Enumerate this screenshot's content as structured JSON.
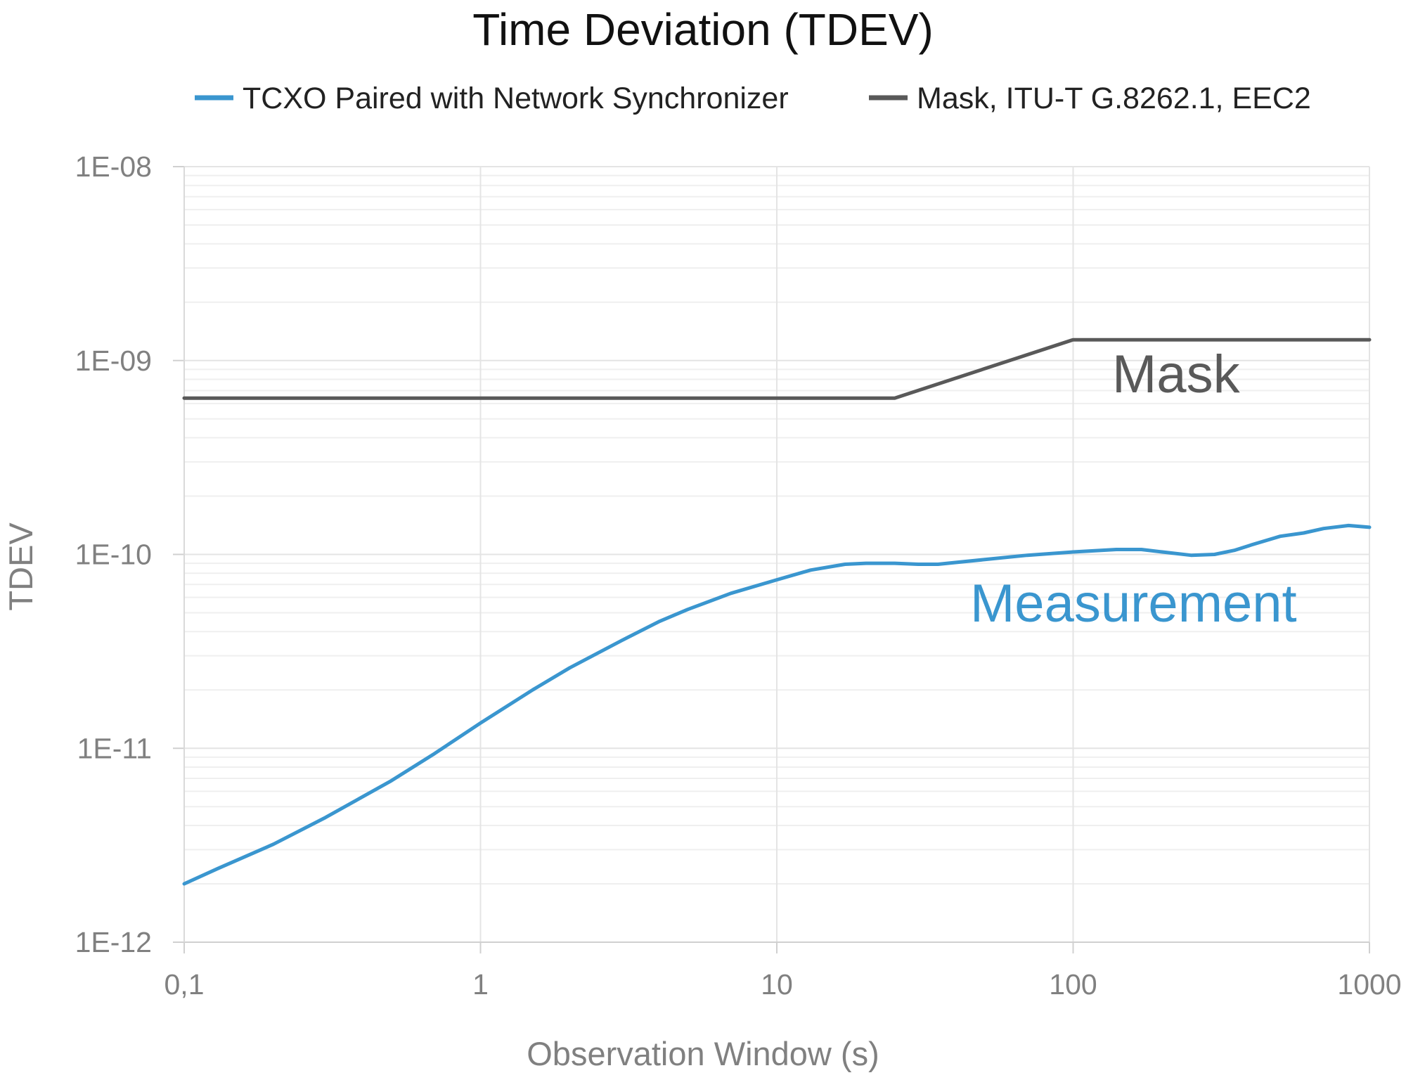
{
  "chart_data": {
    "type": "line",
    "title": "Time Deviation (TDEV)",
    "xlabel": "Observation Window (s)",
    "ylabel": "TDEV",
    "x_scale": "log",
    "y_scale": "log",
    "xlim": [
      0.1,
      1000
    ],
    "ylim": [
      1e-12,
      1e-08
    ],
    "x_ticks": [
      {
        "value": 0.1,
        "label": "0,1"
      },
      {
        "value": 1,
        "label": "1"
      },
      {
        "value": 10,
        "label": "10"
      },
      {
        "value": 100,
        "label": "100"
      },
      {
        "value": 1000,
        "label": "1000"
      }
    ],
    "y_ticks": [
      {
        "value": 1e-12,
        "label": "1E-12"
      },
      {
        "value": 1e-11,
        "label": "1E-11"
      },
      {
        "value": 1e-10,
        "label": "1E-10"
      },
      {
        "value": 1e-09,
        "label": "1E-09"
      },
      {
        "value": 1e-08,
        "label": "1E-08"
      }
    ],
    "grid": true,
    "legend_position": "top",
    "series": [
      {
        "name": "TCXO Paired with Network Synchronizer",
        "color": "#3a96cf",
        "annotation": "Measurement",
        "x": [
          0.1,
          0.13,
          0.2,
          0.3,
          0.5,
          0.7,
          1,
          1.5,
          2,
          3,
          4,
          5,
          7,
          10,
          13,
          17,
          20,
          25,
          30,
          35,
          50,
          70,
          100,
          140,
          170,
          200,
          250,
          300,
          350,
          400,
          500,
          600,
          700,
          850,
          1000
        ],
        "y": [
          2e-12,
          2.4e-12,
          3.2e-12,
          4.4e-12,
          6.8e-12,
          9.4e-12,
          1.35e-11,
          2e-11,
          2.6e-11,
          3.6e-11,
          4.5e-11,
          5.2e-11,
          6.3e-11,
          7.4e-11,
          8.3e-11,
          8.9e-11,
          9e-11,
          9e-11,
          8.9e-11,
          8.9e-11,
          9.4e-11,
          9.9e-11,
          1.03e-10,
          1.06e-10,
          1.06e-10,
          1.03e-10,
          9.9e-11,
          1e-10,
          1.05e-10,
          1.12e-10,
          1.24e-10,
          1.29e-10,
          1.36e-10,
          1.41e-10,
          1.38e-10
        ]
      },
      {
        "name": "Mask, ITU-T G.8262.1, EEC2",
        "color": "#595959",
        "annotation": "Mask",
        "x": [
          0.1,
          25,
          100,
          1000
        ],
        "y": [
          6.4e-10,
          6.4e-10,
          1.28e-09,
          1.28e-09
        ]
      }
    ]
  }
}
